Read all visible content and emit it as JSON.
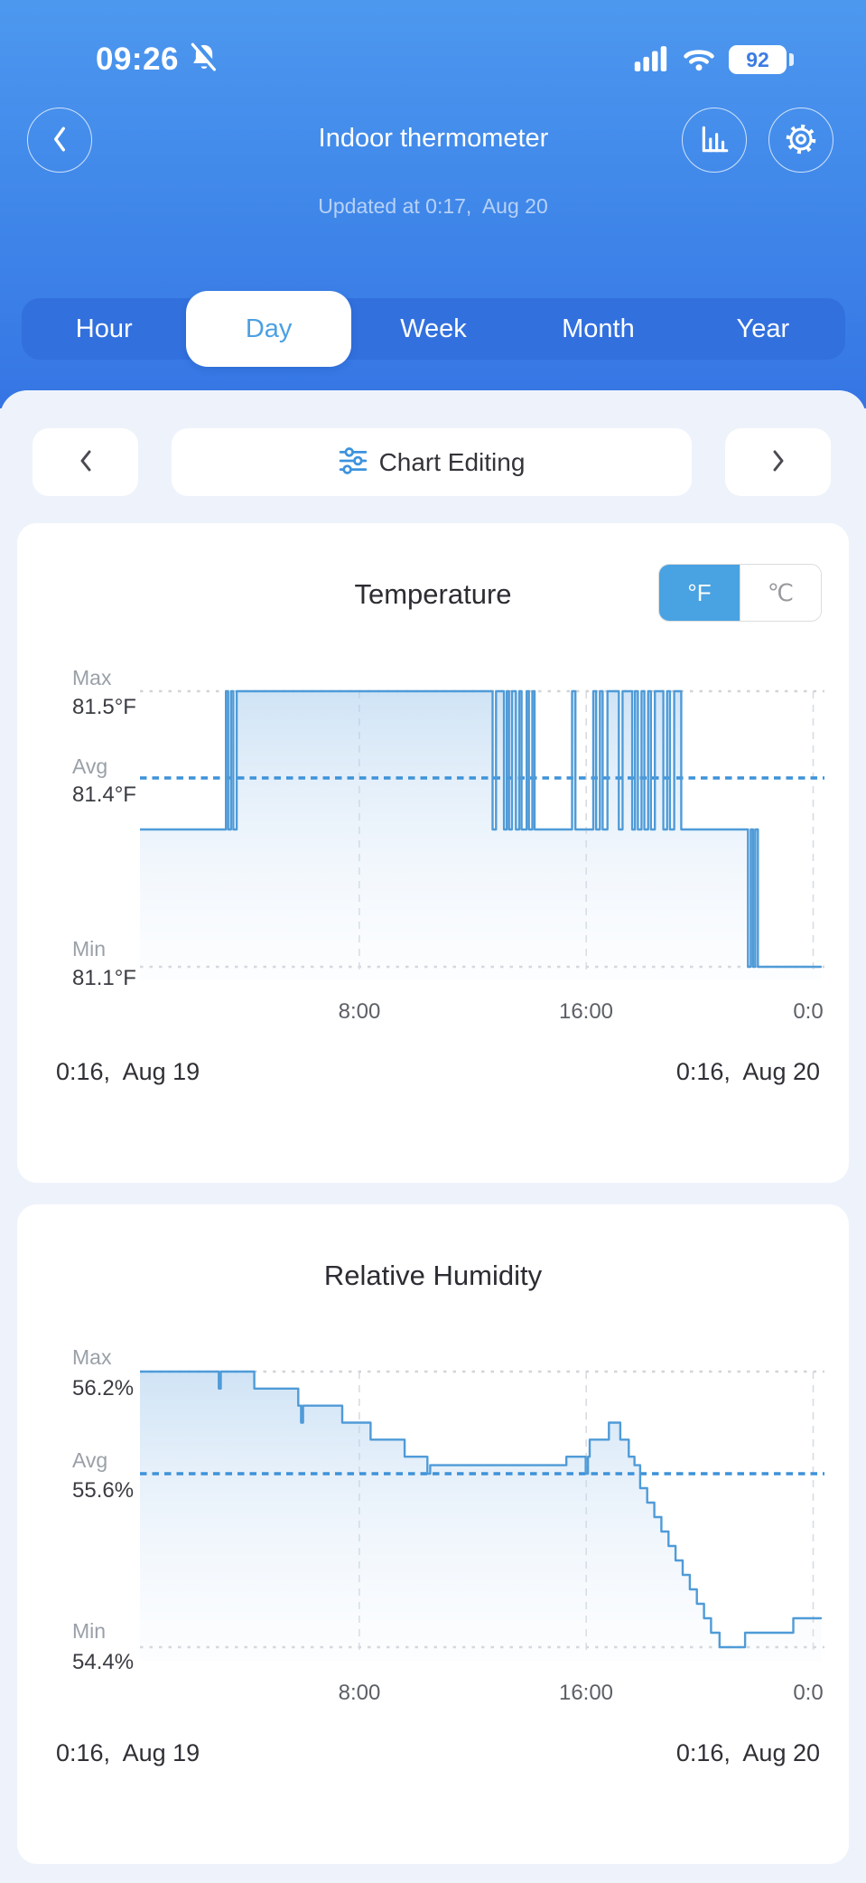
{
  "status_bar": {
    "time": "09:26",
    "battery_percent": "92",
    "icons": [
      "bell-slash-icon",
      "signal-strength-icon",
      "wifi-icon",
      "battery-icon"
    ]
  },
  "header": {
    "title": "Indoor thermometer",
    "subtitle": "Updated at 0:17,  Aug 20",
    "icons": [
      "back-chevron-icon",
      "bar-chart-icon",
      "gear-icon"
    ]
  },
  "tabs": {
    "items": [
      "Hour",
      "Day",
      "Week",
      "Month",
      "Year"
    ],
    "selected": "Day"
  },
  "chart_nav": {
    "edit_label": "Chart Editing",
    "icons": [
      "chevron-left-icon",
      "sliders-icon",
      "chevron-right-icon"
    ]
  },
  "colors": {
    "header_gradient_top": "#4d98ef",
    "header_gradient_bottom": "#3575e4",
    "tabbar_bg": "#3270de",
    "accent_blue": "#49a2e2",
    "chart_line": "#4f9bd8",
    "avg_line": "#3e92d8",
    "sheet_bg": "#eef3fb",
    "card_bg": "#ffffff"
  },
  "chart_data": [
    {
      "type": "line",
      "variant": "step",
      "title": "Temperature",
      "unit_toggle": {
        "options": [
          "°F",
          "℃"
        ],
        "selected": "°F"
      },
      "y_axis": {
        "max_label": "Max",
        "max_value": "81.5°F",
        "avg_label": "Avg",
        "avg_value": "81.4°F",
        "min_label": "Min",
        "min_value": "81.1°F"
      },
      "stats": {
        "max": 81.5,
        "avg": 81.4,
        "min": 81.1,
        "unit": "°F"
      },
      "x_ticks": [
        "8:00",
        "16:00",
        "0:0"
      ],
      "x_start_label": "0:16,  Aug 19",
      "x_end_label": "0:16,  Aug 20",
      "x_range_hours": [
        0.27,
        24.27
      ],
      "grid_hours": [
        8,
        16,
        24
      ],
      "y_anchors": [
        [
          81.5,
          10
        ],
        [
          81.4,
          106
        ],
        [
          81.3,
          163
        ],
        [
          81.1,
          315
        ]
      ],
      "series": [
        [
          0.27,
          81.3
        ],
        [
          3.3,
          81.5
        ],
        [
          3.38,
          81.3
        ],
        [
          3.48,
          81.5
        ],
        [
          3.56,
          81.3
        ],
        [
          3.68,
          81.5
        ],
        [
          12.7,
          81.3
        ],
        [
          12.82,
          81.5
        ],
        [
          13.1,
          81.3
        ],
        [
          13.2,
          81.5
        ],
        [
          13.28,
          81.3
        ],
        [
          13.38,
          81.5
        ],
        [
          13.52,
          81.3
        ],
        [
          13.64,
          81.5
        ],
        [
          13.72,
          81.3
        ],
        [
          13.9,
          81.5
        ],
        [
          13.98,
          81.3
        ],
        [
          14.1,
          81.5
        ],
        [
          14.18,
          81.3
        ],
        [
          15.5,
          81.5
        ],
        [
          15.62,
          81.3
        ],
        [
          16.25,
          81.5
        ],
        [
          16.35,
          81.3
        ],
        [
          16.48,
          81.5
        ],
        [
          16.58,
          81.3
        ],
        [
          16.75,
          81.5
        ],
        [
          17.15,
          81.3
        ],
        [
          17.28,
          81.5
        ],
        [
          17.62,
          81.3
        ],
        [
          17.72,
          81.5
        ],
        [
          17.82,
          81.3
        ],
        [
          17.95,
          81.5
        ],
        [
          18.05,
          81.3
        ],
        [
          18.18,
          81.5
        ],
        [
          18.28,
          81.3
        ],
        [
          18.42,
          81.5
        ],
        [
          18.72,
          81.3
        ],
        [
          18.85,
          81.5
        ],
        [
          18.95,
          81.3
        ],
        [
          19.1,
          81.5
        ],
        [
          19.35,
          81.3
        ],
        [
          21.7,
          81.1
        ],
        [
          21.8,
          81.3
        ],
        [
          21.88,
          81.1
        ],
        [
          21.96,
          81.3
        ],
        [
          22.05,
          81.1
        ]
      ]
    },
    {
      "type": "line",
      "variant": "step",
      "title": "Relative Humidity",
      "y_axis": {
        "max_label": "Max",
        "max_value": "56.2%",
        "avg_label": "Avg",
        "avg_value": "55.6%",
        "min_label": "Min",
        "min_value": "54.4%"
      },
      "stats": {
        "max": 56.2,
        "avg": 55.6,
        "min": 54.4,
        "unit": "%"
      },
      "x_ticks": [
        "8:00",
        "16:00",
        "0:0"
      ],
      "x_start_label": "0:16,  Aug 19",
      "x_end_label": "0:16,  Aug 20",
      "x_range_hours": [
        0.27,
        24.27
      ],
      "grid_hours": [
        8,
        16,
        24
      ],
      "y_anchors": [
        [
          56.2,
          10
        ],
        [
          55.6,
          123
        ],
        [
          54.4,
          315
        ]
      ],
      "series": [
        [
          0.27,
          56.2
        ],
        [
          3.05,
          56.1
        ],
        [
          3.12,
          56.2
        ],
        [
          4.3,
          56.1
        ],
        [
          5.85,
          56.0
        ],
        [
          5.95,
          55.9
        ],
        [
          6.02,
          56.0
        ],
        [
          7.4,
          55.9
        ],
        [
          8.4,
          55.8
        ],
        [
          9.6,
          55.7
        ],
        [
          10.4,
          55.6
        ],
        [
          10.5,
          55.65
        ],
        [
          15.3,
          55.7
        ],
        [
          15.98,
          55.6
        ],
        [
          16.06,
          55.7
        ],
        [
          16.12,
          55.8
        ],
        [
          16.8,
          55.9
        ],
        [
          17.2,
          55.8
        ],
        [
          17.5,
          55.7
        ],
        [
          17.7,
          55.65
        ],
        [
          17.9,
          55.5
        ],
        [
          18.15,
          55.4
        ],
        [
          18.4,
          55.3
        ],
        [
          18.65,
          55.2
        ],
        [
          18.9,
          55.1
        ],
        [
          19.15,
          55.0
        ],
        [
          19.4,
          54.9
        ],
        [
          19.65,
          54.8
        ],
        [
          19.9,
          54.7
        ],
        [
          20.15,
          54.6
        ],
        [
          20.4,
          54.5
        ],
        [
          20.7,
          54.4
        ],
        [
          21.6,
          54.5
        ],
        [
          23.3,
          54.6
        ]
      ]
    }
  ]
}
